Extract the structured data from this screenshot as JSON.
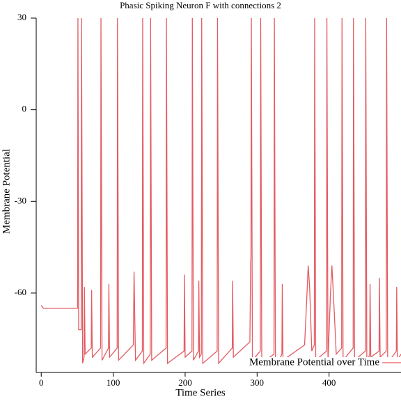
{
  "chart_data": {
    "type": "line",
    "title": "Phasic Spiking Neuron F with connections 2",
    "x_label": "Time Series",
    "y_label": "Membrane Potential",
    "xlim": [
      -7,
      500
    ],
    "ylim": [
      -86,
      30
    ],
    "xticks": [
      0,
      100,
      200,
      300,
      400
    ],
    "yticks": [
      -60,
      -30,
      0,
      30
    ],
    "legend": "lower right",
    "series": [
      {
        "name": "Membrane Potential over Time",
        "color": "#e35b62",
        "x": [
          0,
          3,
          50.5,
          51,
          52,
          55.5,
          56,
          57.5,
          59.5,
          60,
          61,
          69.5,
          70,
          71,
          82.5,
          83,
          84.5,
          93.5,
          94,
          95,
          105.5,
          106,
          107.5,
          128,
          129,
          131,
          140.5,
          141,
          142.5,
          151.5,
          152,
          153.5,
          173.5,
          174,
          175.5,
          198.5,
          199,
          200,
          209.5,
          210,
          211.5,
          218.5,
          219,
          220,
          222.5,
          223,
          224.5,
          244.5,
          245,
          246.5,
          265.5,
          266,
          267,
          290,
          291,
          291.5,
          292,
          293.5,
          304.5,
          305,
          306.5,
          323.5,
          324,
          325.5,
          334.5,
          335,
          336,
          366,
          369,
          371,
          373,
          376,
          379.5,
          380,
          381.5,
          396.5,
          397,
          398.5,
          402,
          404,
          407,
          410,
          417.5,
          418,
          419.5,
          433.5,
          434,
          435.5,
          450.5,
          451,
          452.5,
          456.5,
          457,
          458,
          469.5,
          470,
          471,
          479.5,
          480,
          481.5,
          493.5,
          494,
          495,
          500
        ],
        "values": [
          -64,
          -65,
          -65,
          30,
          -72,
          -72,
          30,
          -83,
          -81,
          -58,
          -80,
          -78,
          -59,
          -81,
          -78,
          30,
          -82,
          -78,
          -57,
          -81,
          -78,
          30,
          -82,
          -77,
          -53,
          -82,
          -79,
          30,
          -83,
          -80,
          30,
          -82,
          -78,
          30,
          -83,
          -79,
          -54,
          -81,
          -79,
          30,
          -82,
          -79,
          -56,
          -81,
          -80,
          30,
          -83,
          -79,
          30,
          -83,
          -78,
          -56,
          -81,
          -76,
          -50,
          -48,
          30,
          -82,
          -79,
          30,
          -83,
          -80,
          30,
          -84,
          -80,
          -57,
          -82,
          -77,
          -62,
          -51,
          -58,
          -79,
          -77,
          30,
          -82,
          -79,
          30,
          -83,
          -60,
          -51,
          -65,
          -80,
          -78,
          30,
          -82,
          -78,
          30,
          -82,
          -79,
          30,
          -83,
          -80,
          -57,
          -81,
          -79,
          -55,
          -81,
          -79,
          30,
          -83,
          -79,
          -58,
          -82,
          -80
        ]
      }
    ]
  }
}
